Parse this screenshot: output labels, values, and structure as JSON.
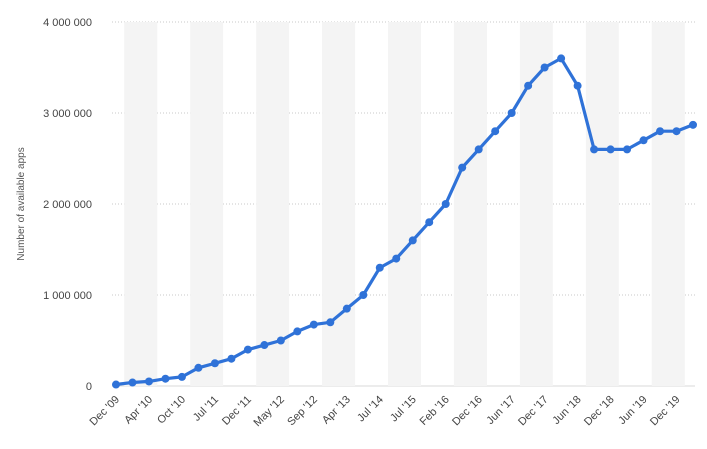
{
  "chart_data": {
    "type": "line",
    "title": "",
    "xlabel": "",
    "ylabel": "Number of available apps",
    "ylim": [
      0,
      4000000
    ],
    "y_ticks": [
      0,
      1000000,
      2000000,
      3000000,
      4000000
    ],
    "y_tick_labels": [
      "0",
      "1 000 000",
      "2 000 000",
      "3 000 000",
      "4 000 000"
    ],
    "x_tick_labels": [
      "Dec '09",
      "Apr '10",
      "Oct '10",
      "Jul '11",
      "Dec '11",
      "May '12",
      "Sep '12",
      "Apr '13",
      "Jul '14",
      "Jul '15",
      "Feb '16",
      "Dec '16",
      "Jun '17",
      "Dec '17",
      "Jun '18",
      "Dec '18",
      "Jun '19",
      "Dec '19"
    ],
    "x_tick_positions": [
      0,
      2,
      4,
      6,
      8,
      10,
      12,
      14,
      16,
      18,
      20,
      22,
      24,
      26,
      28,
      30,
      32,
      34
    ],
    "grid": true,
    "line_color": "#2f72d8",
    "series": [
      {
        "values": [
          16000,
          38000,
          50000,
          80000,
          100000,
          200000,
          250000,
          300000,
          400000,
          450000,
          500000,
          600000,
          675000,
          700000,
          850000,
          1000000,
          1300000,
          1400000,
          1600000,
          1800000,
          2000000,
          2400000,
          2600000,
          2800000,
          3000000,
          3300000,
          3500000,
          3600000,
          3300000,
          2600000,
          2600000,
          2600000,
          2700000,
          2800000,
          2800000,
          2870000
        ]
      }
    ]
  }
}
